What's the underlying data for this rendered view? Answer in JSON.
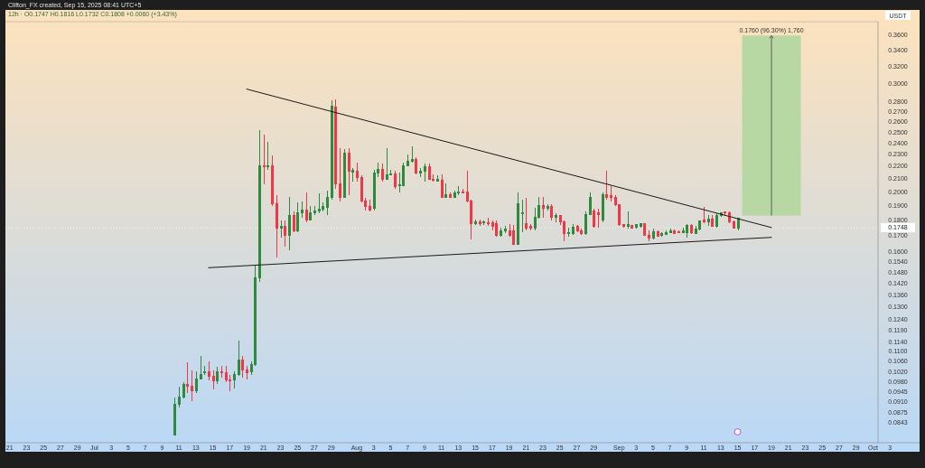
{
  "chart_data": {
    "type": "candlestick",
    "ylabel": "USDT",
    "log": "y",
    "annotations": [
      "Clifton_FX created, Sep 15, 2025 08:41 UTC+5",
      "12h · O0.1747 H0.1816 L0.1732 C0.1808 +0.0060 (+3.43%)"
    ],
    "xlim": [
      "2025-06-20T12:00",
      "2025-10-06T12:00"
    ],
    "ylim": [
      0.0781,
      0.3779
    ],
    "xticks": [
      {
        "value": "2025-06-21",
        "label": "21"
      },
      {
        "value": "2025-06-23",
        "label": "23"
      },
      {
        "value": "2025-06-25",
        "label": "25"
      },
      {
        "value": "2025-06-27",
        "label": "27"
      },
      {
        "value": "2025-06-29",
        "label": "29"
      },
      {
        "value": "2025-07-01",
        "label": "Jul"
      },
      {
        "value": "2025-07-03",
        "label": "3"
      },
      {
        "value": "2025-07-05",
        "label": "5"
      },
      {
        "value": "2025-07-07",
        "label": "7"
      },
      {
        "value": "2025-07-09",
        "label": "9"
      },
      {
        "value": "2025-07-11",
        "label": "11"
      },
      {
        "value": "2025-07-13",
        "label": "13"
      },
      {
        "value": "2025-07-15",
        "label": "15"
      },
      {
        "value": "2025-07-17",
        "label": "17"
      },
      {
        "value": "2025-07-19",
        "label": "19"
      },
      {
        "value": "2025-07-21",
        "label": "21"
      },
      {
        "value": "2025-07-23",
        "label": "23"
      },
      {
        "value": "2025-07-25",
        "label": "25"
      },
      {
        "value": "2025-07-27",
        "label": "27"
      },
      {
        "value": "2025-07-29",
        "label": "29"
      },
      {
        "value": "2025-08-01",
        "label": "Aug"
      },
      {
        "value": "2025-08-03",
        "label": "3"
      },
      {
        "value": "2025-08-05",
        "label": "5"
      },
      {
        "value": "2025-08-07",
        "label": "7"
      },
      {
        "value": "2025-08-09",
        "label": "9"
      },
      {
        "value": "2025-08-11",
        "label": "11"
      },
      {
        "value": "2025-08-13",
        "label": "13"
      },
      {
        "value": "2025-08-15",
        "label": "15"
      },
      {
        "value": "2025-08-17",
        "label": "17"
      },
      {
        "value": "2025-08-19",
        "label": "19"
      },
      {
        "value": "2025-08-21",
        "label": "21"
      },
      {
        "value": "2025-08-23",
        "label": "23"
      },
      {
        "value": "2025-08-25",
        "label": "25"
      },
      {
        "value": "2025-08-27",
        "label": "27"
      },
      {
        "value": "2025-08-29",
        "label": "29"
      },
      {
        "value": "2025-09-01",
        "label": "Sep"
      },
      {
        "value": "2025-09-03",
        "label": "3"
      },
      {
        "value": "2025-09-05",
        "label": "5"
      },
      {
        "value": "2025-09-07",
        "label": "7"
      },
      {
        "value": "2025-09-09",
        "label": "9"
      },
      {
        "value": "2025-09-11",
        "label": "11"
      },
      {
        "value": "2025-09-13",
        "label": "13"
      },
      {
        "value": "2025-09-15",
        "label": "15"
      },
      {
        "value": "2025-09-17",
        "label": "17"
      },
      {
        "value": "2025-09-19",
        "label": "19"
      },
      {
        "value": "2025-09-21",
        "label": "21"
      },
      {
        "value": "2025-09-23",
        "label": "23"
      },
      {
        "value": "2025-09-25",
        "label": "25"
      },
      {
        "value": "2025-09-27",
        "label": "27"
      },
      {
        "value": "2025-09-29",
        "label": "29"
      },
      {
        "value": "2025-10-01",
        "label": "Oct"
      },
      {
        "value": "2025-10-03",
        "label": "3"
      }
    ],
    "yticks": [
      {
        "value": 0.36,
        "label": "0.3600"
      },
      {
        "value": 0.34,
        "label": "0.3400"
      },
      {
        "value": 0.32,
        "label": "0.3200"
      },
      {
        "value": 0.3,
        "label": "0.3000"
      },
      {
        "value": 0.28,
        "label": "0.2800"
      },
      {
        "value": 0.27,
        "label": "0.2700"
      },
      {
        "value": 0.26,
        "label": "0.2600"
      },
      {
        "value": 0.25,
        "label": "0.2500"
      },
      {
        "value": 0.24,
        "label": "0.2400"
      },
      {
        "value": 0.23,
        "label": "0.2300"
      },
      {
        "value": 0.22,
        "label": "0.2200"
      },
      {
        "value": 0.21,
        "label": "0.2100"
      },
      {
        "value": 0.2,
        "label": "0.2000"
      },
      {
        "value": 0.19,
        "label": "0.1900"
      },
      {
        "value": 0.18,
        "label": "0.1800"
      },
      {
        "value": 0.17,
        "label": "0.1700"
      },
      {
        "value": 0.16,
        "label": "0.1600"
      },
      {
        "value": 0.154,
        "label": "0.1540"
      },
      {
        "value": 0.148,
        "label": "0.1480"
      },
      {
        "value": 0.142,
        "label": "0.1420"
      },
      {
        "value": 0.136,
        "label": "0.1360"
      },
      {
        "value": 0.13,
        "label": "0.1300"
      },
      {
        "value": 0.124,
        "label": "0.1240"
      },
      {
        "value": 0.119,
        "label": "0.1190"
      },
      {
        "value": 0.114,
        "label": "0.1140"
      },
      {
        "value": 0.11,
        "label": "0.1100"
      },
      {
        "value": 0.106,
        "label": "0.1060"
      },
      {
        "value": 0.102,
        "label": "0.1020"
      },
      {
        "value": 0.098,
        "label": "0.0980"
      },
      {
        "value": 0.0945,
        "label": "0.0945"
      },
      {
        "value": 0.091,
        "label": "0.0910"
      },
      {
        "value": 0.0875,
        "label": "0.0875"
      },
      {
        "value": 0.0843,
        "label": "0.0843"
      }
    ],
    "ref_lines": [
      {
        "axis": "y",
        "value": 0.1748,
        "label": "0.1748",
        "line_style": "dotted"
      }
    ],
    "bands": [
      {
        "axis": "y",
        "from": 0.1828,
        "to": 0.3588,
        "label": "0.1760 (96.30%) 1,760",
        "color": "#b7d7a3"
      }
    ],
    "x": [
      "2025-07-10T12:00",
      "2025-07-11T00:00",
      "2025-07-11T12:00",
      "2025-07-12T00:00",
      "2025-07-12T12:00",
      "2025-07-13T00:00",
      "2025-07-13T12:00",
      "2025-07-14T00:00",
      "2025-07-14T12:00",
      "2025-07-15T00:00",
      "2025-07-15T12:00",
      "2025-07-16T00:00",
      "2025-07-16T12:00",
      "2025-07-17T00:00",
      "2025-07-17T12:00",
      "2025-07-18T00:00",
      "2025-07-18T12:00",
      "2025-07-19T00:00",
      "2025-07-19T12:00",
      "2025-07-20T00:00",
      "2025-07-20T12:00",
      "2025-07-21T00:00",
      "2025-07-21T12:00",
      "2025-07-22T00:00",
      "2025-07-22T12:00",
      "2025-07-23T00:00",
      "2025-07-23T12:00",
      "2025-07-24T00:00",
      "2025-07-24T12:00",
      "2025-07-25T00:00",
      "2025-07-25T12:00",
      "2025-07-26T00:00",
      "2025-07-26T12:00",
      "2025-07-27T00:00",
      "2025-07-27T12:00",
      "2025-07-28T00:00",
      "2025-07-28T12:00",
      "2025-07-29T00:00",
      "2025-07-29T12:00",
      "2025-07-30T00:00",
      "2025-07-30T12:00",
      "2025-07-31T00:00",
      "2025-07-31T12:00",
      "2025-08-01T00:00",
      "2025-08-01T12:00",
      "2025-08-02T00:00",
      "2025-08-02T12:00",
      "2025-08-03T00:00",
      "2025-08-03T12:00",
      "2025-08-04T00:00",
      "2025-08-04T12:00",
      "2025-08-05T00:00",
      "2025-08-05T12:00",
      "2025-08-06T00:00",
      "2025-08-06T12:00",
      "2025-08-07T00:00",
      "2025-08-07T12:00",
      "2025-08-08T00:00",
      "2025-08-08T12:00",
      "2025-08-09T00:00",
      "2025-08-09T12:00",
      "2025-08-10T00:00",
      "2025-08-10T12:00",
      "2025-08-11T00:00",
      "2025-08-11T12:00",
      "2025-08-12T00:00",
      "2025-08-12T12:00",
      "2025-08-13T00:00",
      "2025-08-13T12:00",
      "2025-08-14T00:00",
      "2025-08-14T12:00",
      "2025-08-15T00:00",
      "2025-08-15T12:00",
      "2025-08-16T00:00",
      "2025-08-16T12:00",
      "2025-08-17T00:00",
      "2025-08-17T12:00",
      "2025-08-18T00:00",
      "2025-08-18T12:00",
      "2025-08-19T00:00",
      "2025-08-19T12:00",
      "2025-08-20T00:00",
      "2025-08-20T12:00",
      "2025-08-21T00:00",
      "2025-08-21T12:00",
      "2025-08-22T00:00",
      "2025-08-22T12:00",
      "2025-08-23T00:00",
      "2025-08-23T12:00",
      "2025-08-24T00:00",
      "2025-08-24T12:00",
      "2025-08-25T00:00",
      "2025-08-25T12:00",
      "2025-08-26T00:00",
      "2025-08-26T12:00",
      "2025-08-27T00:00",
      "2025-08-27T12:00",
      "2025-08-28T00:00",
      "2025-08-28T12:00",
      "2025-08-29T00:00",
      "2025-08-29T12:00",
      "2025-08-30T00:00",
      "2025-08-30T12:00",
      "2025-08-31T00:00",
      "2025-08-31T12:00",
      "2025-09-01T00:00",
      "2025-09-01T12:00",
      "2025-09-02T00:00",
      "2025-09-02T12:00",
      "2025-09-03T00:00",
      "2025-09-03T12:00",
      "2025-09-04T00:00",
      "2025-09-04T12:00",
      "2025-09-05T00:00",
      "2025-09-05T12:00",
      "2025-09-06T00:00",
      "2025-09-06T12:00",
      "2025-09-07T00:00",
      "2025-09-07T12:00",
      "2025-09-08T00:00",
      "2025-09-08T12:00",
      "2025-09-09T00:00",
      "2025-09-09T12:00",
      "2025-09-10T00:00",
      "2025-09-10T12:00",
      "2025-09-11T00:00",
      "2025-09-11T12:00",
      "2025-09-12T00:00",
      "2025-09-12T12:00",
      "2025-09-13T00:00",
      "2025-09-13T12:00",
      "2025-09-14T00:00",
      "2025-09-14T12:00",
      "2025-09-15T00:00"
    ],
    "ohlc": [
      [
        0.0803,
        0.0926,
        0.0803,
        0.0901
      ],
      [
        0.0901,
        0.0964,
        0.0892,
        0.0926
      ],
      [
        0.0926,
        0.098,
        0.0923,
        0.097
      ],
      [
        0.097,
        0.1055,
        0.0941,
        0.0964
      ],
      [
        0.0964,
        0.1024,
        0.0911,
        0.0948
      ],
      [
        0.0948,
        0.102,
        0.0941,
        0.099
      ],
      [
        0.0993,
        0.1081,
        0.099,
        0.101
      ],
      [
        0.1014,
        0.1041,
        0.1007,
        0.102
      ],
      [
        0.102,
        0.1058,
        0.0987,
        0.1003
      ],
      [
        0.1003,
        0.1024,
        0.0954,
        0.0984
      ],
      [
        0.0984,
        0.1037,
        0.0974,
        0.102
      ],
      [
        0.102,
        0.1041,
        0.0997,
        0.1014
      ],
      [
        0.1014,
        0.1041,
        0.098,
        0.0987
      ],
      [
        0.0987,
        0.1007,
        0.0948,
        0.0984
      ],
      [
        0.0987,
        0.102,
        0.0957,
        0.1007
      ],
      [
        0.1007,
        0.1146,
        0.1003,
        0.1065
      ],
      [
        0.1065,
        0.1081,
        0.0997,
        0.1024
      ],
      [
        0.1024,
        0.1041,
        0.099,
        0.1014
      ],
      [
        0.1017,
        0.1058,
        0.1007,
        0.1048
      ],
      [
        0.1048,
        0.1522,
        0.1041,
        0.1448
      ],
      [
        0.1448,
        0.2517,
        0.1428,
        0.2203
      ],
      [
        0.2203,
        0.2476,
        0.2054,
        0.2196
      ],
      [
        0.2196,
        0.241,
        0.2167,
        0.2203
      ],
      [
        0.2203,
        0.2293,
        0.1896,
        0.1909
      ],
      [
        0.1909,
        0.1974,
        0.1563,
        0.1745
      ],
      [
        0.1745,
        0.1798,
        0.1682,
        0.1757
      ],
      [
        0.1757,
        0.1798,
        0.1627,
        0.1699
      ],
      [
        0.1699,
        0.196,
        0.1605,
        0.1829
      ],
      [
        0.1829,
        0.1859,
        0.1716,
        0.1728
      ],
      [
        0.1728,
        0.1922,
        0.1716,
        0.1847
      ],
      [
        0.1847,
        0.1928,
        0.1816,
        0.1865
      ],
      [
        0.1865,
        0.1993,
        0.1786,
        0.1798
      ],
      [
        0.1798,
        0.1896,
        0.1798,
        0.1847
      ],
      [
        0.1847,
        0.1896,
        0.1829,
        0.1859
      ],
      [
        0.1859,
        0.1987,
        0.1847,
        0.1872
      ],
      [
        0.1872,
        0.1922,
        0.1859,
        0.189
      ],
      [
        0.1884,
        0.2007,
        0.1829,
        0.1954
      ],
      [
        0.1954,
        0.2819,
        0.1941,
        0.2754
      ],
      [
        0.2745,
        0.2829,
        0.202,
        0.2061
      ],
      [
        0.2061,
        0.2355,
        0.1928,
        0.1954
      ],
      [
        0.196,
        0.2347,
        0.1954,
        0.2308
      ],
      [
        0.2308,
        0.2355,
        0.1974,
        0.216
      ],
      [
        0.2153,
        0.2181,
        0.2075,
        0.2167
      ],
      [
        0.216,
        0.2232,
        0.2075,
        0.2111
      ],
      [
        0.2111,
        0.2125,
        0.1922,
        0.1928
      ],
      [
        0.1928,
        0.1954,
        0.1865,
        0.189
      ],
      [
        0.189,
        0.1941,
        0.1859,
        0.1865
      ],
      [
        0.1878,
        0.2167,
        0.1865,
        0.2146
      ],
      [
        0.2146,
        0.2232,
        0.2111,
        0.2174
      ],
      [
        0.2174,
        0.2218,
        0.2075,
        0.2097
      ],
      [
        0.2097,
        0.2355,
        0.209,
        0.2132
      ],
      [
        0.2132,
        0.2167,
        0.2125,
        0.2139
      ],
      [
        0.2139,
        0.216,
        0.202,
        0.204
      ],
      [
        0.2047,
        0.2146,
        0.1993,
        0.2054
      ],
      [
        0.2047,
        0.2232,
        0.204,
        0.2203
      ],
      [
        0.2203,
        0.2301,
        0.2196,
        0.224
      ],
      [
        0.224,
        0.2371,
        0.2232,
        0.2255
      ],
      [
        0.2255,
        0.2278,
        0.2132,
        0.2146
      ],
      [
        0.2146,
        0.2181,
        0.2111,
        0.216
      ],
      [
        0.216,
        0.2218,
        0.2075,
        0.2196
      ],
      [
        0.2196,
        0.2218,
        0.209,
        0.2097
      ],
      [
        0.2097,
        0.2132,
        0.2075,
        0.209
      ],
      [
        0.2083,
        0.2125,
        0.2075,
        0.2097
      ],
      [
        0.209,
        0.2132,
        0.1954,
        0.196
      ],
      [
        0.196,
        0.2061,
        0.1954,
        0.1974
      ],
      [
        0.1974,
        0.1993,
        0.1954,
        0.196
      ],
      [
        0.196,
        0.2007,
        0.1954,
        0.1987
      ],
      [
        0.1987,
        0.204,
        0.1974,
        0.2
      ],
      [
        0.2,
        0.202,
        0.1987,
        0.1993
      ],
      [
        0.2,
        0.216,
        0.1922,
        0.1928
      ],
      [
        0.1928,
        0.1941,
        0.1671,
        0.1774
      ],
      [
        0.1774,
        0.1804,
        0.1768,
        0.1786
      ],
      [
        0.1786,
        0.1804,
        0.1757,
        0.1774
      ],
      [
        0.178,
        0.1798,
        0.1768,
        0.1786
      ],
      [
        0.178,
        0.1816,
        0.1757,
        0.1774
      ],
      [
        0.178,
        0.1798,
        0.1728,
        0.1757
      ],
      [
        0.1774,
        0.1798,
        0.1688,
        0.1699
      ],
      [
        0.1699,
        0.1745,
        0.1688,
        0.1728
      ],
      [
        0.1728,
        0.1757,
        0.1711,
        0.1739
      ],
      [
        0.1728,
        0.1774,
        0.1688,
        0.1699
      ],
      [
        0.1728,
        0.1768,
        0.1638,
        0.1643
      ],
      [
        0.1643,
        0.1993,
        0.1638,
        0.1909
      ],
      [
        0.1841,
        0.1941,
        0.1716,
        0.1847
      ],
      [
        0.1774,
        0.1954,
        0.1728,
        0.1745
      ],
      [
        0.1757,
        0.1774,
        0.1728,
        0.1745
      ],
      [
        0.1745,
        0.1884,
        0.1728,
        0.1816
      ],
      [
        0.1816,
        0.196,
        0.181,
        0.1896
      ],
      [
        0.1896,
        0.196,
        0.1816,
        0.1878
      ],
      [
        0.1878,
        0.1909,
        0.1865,
        0.189
      ],
      [
        0.189,
        0.1909,
        0.1798,
        0.1816
      ],
      [
        0.1816,
        0.1847,
        0.1786,
        0.1829
      ],
      [
        0.1829,
        0.1835,
        0.1768,
        0.1786
      ],
      [
        0.1786,
        0.1798,
        0.166,
        0.1711
      ],
      [
        0.1711,
        0.1745,
        0.1688,
        0.1716
      ],
      [
        0.1711,
        0.1774,
        0.1699,
        0.1751
      ],
      [
        0.1757,
        0.1768,
        0.1716,
        0.1728
      ],
      [
        0.1728,
        0.1739,
        0.1699,
        0.1711
      ],
      [
        0.1711,
        0.1859,
        0.1699,
        0.1835
      ],
      [
        0.1835,
        0.1993,
        0.1829,
        0.1954
      ],
      [
        0.1859,
        0.1878,
        0.1745,
        0.1757
      ],
      [
        0.1847,
        0.1878,
        0.1745,
        0.1835
      ],
      [
        0.1798,
        0.1993,
        0.1786,
        0.198
      ],
      [
        0.198,
        0.216,
        0.1941,
        0.196
      ],
      [
        0.1967,
        0.204,
        0.1928,
        0.196
      ],
      [
        0.196,
        0.1974,
        0.1896,
        0.1903
      ],
      [
        0.1903,
        0.1909,
        0.1757,
        0.1768
      ],
      [
        0.1768,
        0.1774,
        0.1745,
        0.1757
      ],
      [
        0.1757,
        0.1859,
        0.1739,
        0.1768
      ],
      [
        0.1762,
        0.1768,
        0.1739,
        0.1745
      ],
      [
        0.1751,
        0.1774,
        0.1739,
        0.1768
      ],
      [
        0.1757,
        0.178,
        0.1745,
        0.1774
      ],
      [
        0.1774,
        0.178,
        0.1694,
        0.1699
      ],
      [
        0.1699,
        0.1728,
        0.166,
        0.1682
      ],
      [
        0.1682,
        0.1739,
        0.1671,
        0.1722
      ],
      [
        0.1722,
        0.1728,
        0.1688,
        0.1694
      ],
      [
        0.1699,
        0.1716,
        0.1688,
        0.1711
      ],
      [
        0.1705,
        0.1728,
        0.1699,
        0.1716
      ],
      [
        0.1716,
        0.1739,
        0.1711,
        0.1728
      ],
      [
        0.1728,
        0.1733,
        0.1705,
        0.1711
      ],
      [
        0.1722,
        0.1728,
        0.1711,
        0.1716
      ],
      [
        0.1716,
        0.1745,
        0.1711,
        0.1728
      ],
      [
        0.1716,
        0.1774,
        0.1682,
        0.1762
      ],
      [
        0.1762,
        0.1774,
        0.1705,
        0.1716
      ],
      [
        0.1711,
        0.1757,
        0.1705,
        0.1739
      ],
      [
        0.1739,
        0.1798,
        0.1728,
        0.1792
      ],
      [
        0.1798,
        0.189,
        0.178,
        0.1786
      ],
      [
        0.1786,
        0.1829,
        0.1757,
        0.1804
      ],
      [
        0.1804,
        0.1835,
        0.1751,
        0.1757
      ],
      [
        0.1757,
        0.1847,
        0.1745,
        0.1829
      ],
      [
        0.1829,
        0.1853,
        0.1822,
        0.1847
      ],
      [
        0.1853,
        0.1859,
        0.1835,
        0.1847
      ],
      [
        0.1847,
        0.1859,
        0.178,
        0.1786
      ],
      [
        0.1786,
        0.1798,
        0.1739,
        0.1745
      ],
      [
        0.1747,
        0.1816,
        0.1732,
        0.1808
      ]
    ],
    "series": [
      {
        "type": "line",
        "color": "#1a1a1a",
        "x": [
          "2025-07-19T00:00",
          "2025-09-19T00:00"
        ],
        "values": [
          0.2936,
          0.1748
        ]
      },
      {
        "type": "line",
        "color": "#1a1a1a",
        "x": [
          "2025-07-14T12:00",
          "2025-09-19T00:00"
        ],
        "values": [
          0.1504,
          0.1685
        ]
      }
    ]
  }
}
